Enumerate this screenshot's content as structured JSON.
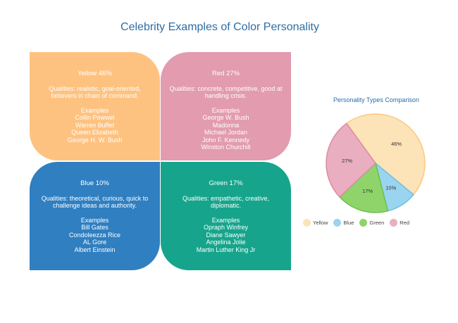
{
  "title": "Celebrity Examples of Color Personality",
  "quadrants": {
    "yellow": {
      "heading": "Yellow 46%",
      "qualities": "Qualities: realistic, goal-oriented, believers in chain of command.",
      "examples_heading": "Examples",
      "examples": [
        "Collin Powwel",
        "Warren Buffet",
        "Queen Elizabeth",
        "George H. W. Bush"
      ]
    },
    "red": {
      "heading": "Red 27%",
      "qualities": "Qualities: concrete, competitive, good at handling crisis.",
      "examples_heading": "Examples",
      "examples": [
        "George W. Bush",
        "Madonna",
        "Michael Jordan",
        "John F. Kennedy",
        "Winston Churchill"
      ]
    },
    "blue": {
      "heading": "Blue 10%",
      "qualities": "Qualities: theoretical, curious, quick to challenge ideas and authority.",
      "examples_heading": "Examples",
      "examples": [
        "Bill Gates",
        "Condoleezza Rice",
        "AL Gore",
        "Albert Einstein"
      ]
    },
    "green": {
      "heading": "Green 17%",
      "qualities": "Qualities: empathetic, creative, diplomatic.",
      "examples_heading": "Examples",
      "examples": [
        "Opraph Winfrey",
        "Diane Sawyer",
        "Angelina Jolie",
        "Martin Luther King Jr"
      ]
    }
  },
  "colors": {
    "yellow": "#fec280",
    "red": "#e29baf",
    "blue": "#2f7fc1",
    "green": "#16a58c",
    "pie_yellow": "#fde3b8",
    "pie_blue": "#9ad4ef",
    "pie_green": "#8fd46a",
    "pie_red": "#e9aebf"
  },
  "chart_data": {
    "type": "pie",
    "title": "Personality Types Comparison",
    "categories": [
      "Yellow",
      "Blue",
      "Green",
      "Red"
    ],
    "values": [
      46,
      10,
      17,
      27
    ],
    "labels": [
      "46%",
      "10%",
      "17%",
      "27%"
    ],
    "legend": "bottom"
  }
}
